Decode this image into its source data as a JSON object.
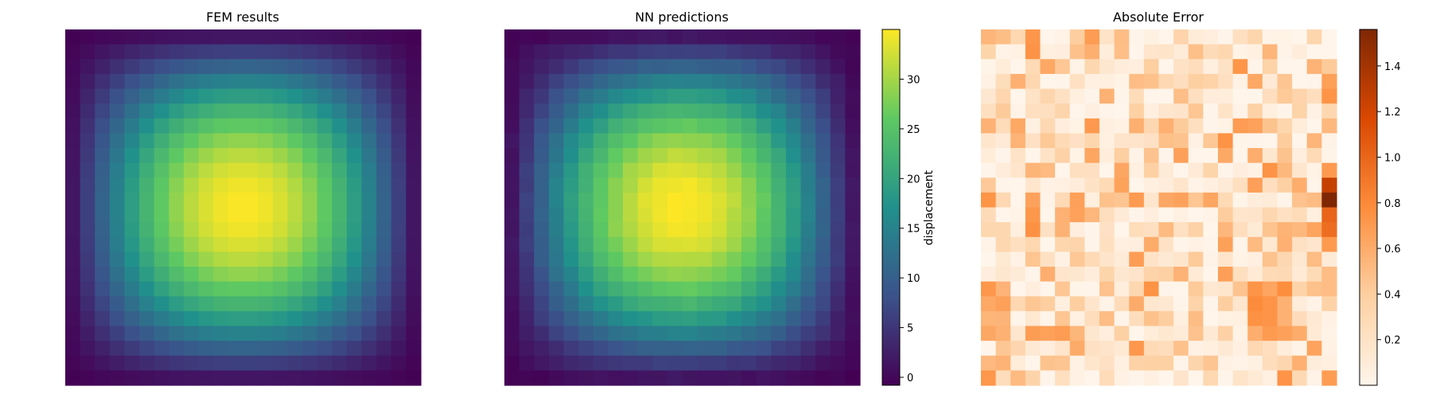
{
  "chart_data": [
    {
      "type": "heatmap",
      "title": "FEM results",
      "grid": [
        24,
        24
      ],
      "field": "displacement",
      "value_range": [
        0,
        35
      ],
      "peak": {
        "row": 12,
        "col": 12,
        "value": 35
      },
      "colormap": "viridis",
      "axes": "off"
    },
    {
      "type": "heatmap",
      "title": "NN predictions",
      "grid": [
        24,
        24
      ],
      "field": "displacement",
      "value_range": [
        0,
        35
      ],
      "peak": {
        "row": 12,
        "col": 12,
        "value": 35
      },
      "colormap": "viridis",
      "axes": "off",
      "colorbar": {
        "label": "displacement",
        "ticks": [
          0,
          5,
          10,
          15,
          20,
          25,
          30
        ],
        "range": [
          -0.8,
          35
        ]
      }
    },
    {
      "type": "heatmap",
      "title": "Absolute Error",
      "grid": [
        24,
        24
      ],
      "value_range": [
        0,
        1.55
      ],
      "max_cell": {
        "row": 11,
        "col": 23,
        "value": 1.55
      },
      "colormap": "Oranges",
      "axes": "off",
      "colorbar": {
        "ticks": [
          0.2,
          0.4,
          0.6,
          0.8,
          1.0,
          1.2,
          1.4
        ],
        "tick_labels": [
          "0.2",
          "0.4",
          "0.6",
          "0.8",
          "1.0",
          "1.2",
          "1.4"
        ],
        "range": [
          0,
          1.56
        ]
      }
    }
  ],
  "colors": {
    "viridis": [
      "#440154",
      "#3b528b",
      "#21918c",
      "#5ec962",
      "#fde725"
    ],
    "oranges": [
      "#fff5eb",
      "#fdd0a2",
      "#fd8d3c",
      "#d94801",
      "#7f2704"
    ]
  }
}
